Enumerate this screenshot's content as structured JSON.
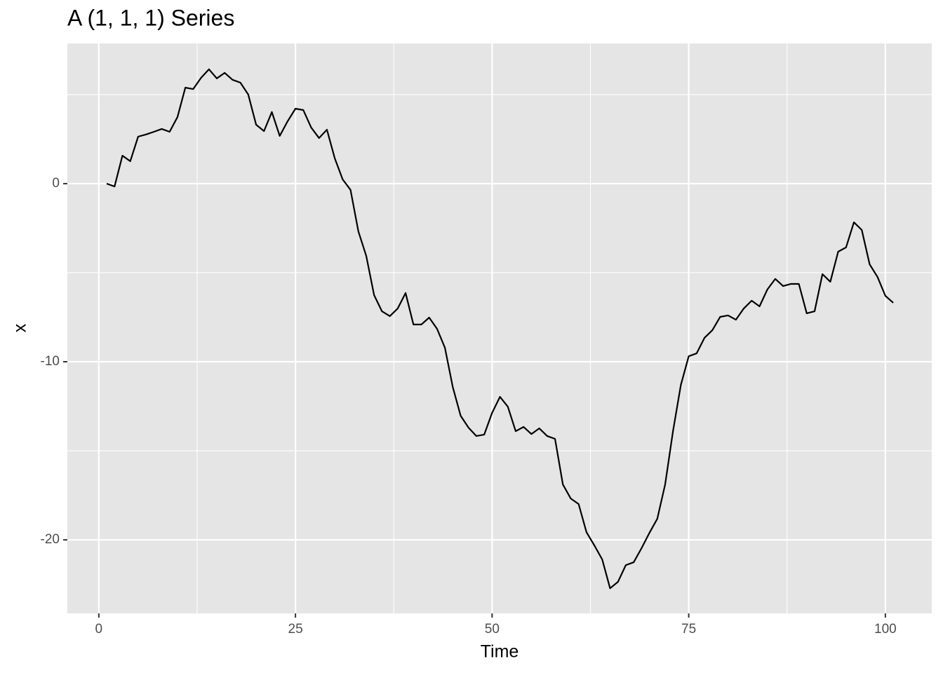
{
  "chart_data": {
    "type": "line",
    "title": "A (1, 1, 1) Series",
    "xlabel": "Time",
    "ylabel": "x",
    "x": [
      1,
      2,
      3,
      4,
      5,
      6,
      7,
      8,
      9,
      10,
      11,
      12,
      13,
      14,
      15,
      16,
      17,
      18,
      19,
      20,
      21,
      22,
      23,
      24,
      25,
      26,
      27,
      28,
      29,
      30,
      31,
      32,
      33,
      34,
      35,
      36,
      37,
      38,
      39,
      40,
      41,
      42,
      43,
      44,
      45,
      46,
      47,
      48,
      49,
      50,
      51,
      52,
      53,
      54,
      55,
      56,
      57,
      58,
      59,
      60,
      61,
      62,
      63,
      64,
      65,
      66,
      67,
      68,
      69,
      70,
      71,
      72,
      73,
      74,
      75,
      76,
      77,
      78,
      79,
      80,
      81,
      82,
      83,
      84,
      85,
      86,
      87,
      88,
      89,
      90,
      91,
      92,
      93,
      94,
      95,
      96,
      97,
      98,
      99,
      100,
      101
    ],
    "series": [
      {
        "name": "x",
        "color": "#000000",
        "values": [
          0,
          -0.16,
          1.57,
          1.26,
          2.64,
          2.76,
          2.91,
          3.07,
          2.91,
          3.74,
          5.39,
          5.31,
          5.94,
          6.42,
          5.91,
          6.22,
          5.83,
          5.67,
          5.0,
          3.31,
          2.95,
          4.02,
          2.68,
          3.5,
          4.21,
          4.13,
          3.15,
          2.56,
          3.03,
          1.42,
          0.24,
          -0.35,
          -2.68,
          -4.06,
          -6.26,
          -7.17,
          -7.44,
          -7.01,
          -6.14,
          -7.91,
          -7.91,
          -7.52,
          -8.15,
          -9.21,
          -11.42,
          -13.03,
          -13.7,
          -14.17,
          -14.09,
          -12.87,
          -11.97,
          -12.52,
          -13.9,
          -13.66,
          -14.06,
          -13.74,
          -14.17,
          -14.33,
          -16.89,
          -17.68,
          -17.99,
          -19.57,
          -20.31,
          -21.1,
          -22.72,
          -22.36,
          -21.42,
          -21.26,
          -20.47,
          -19.61,
          -18.82,
          -16.89,
          -13.9,
          -11.3,
          -9.69,
          -9.53,
          -8.66,
          -8.23,
          -7.48,
          -7.4,
          -7.64,
          -7.01,
          -6.57,
          -6.89,
          -5.94,
          -5.35,
          -5.75,
          -5.63,
          -5.63,
          -7.28,
          -7.17,
          -5.08,
          -5.51,
          -3.82,
          -3.58,
          -2.17,
          -2.6,
          -4.53,
          -5.24,
          -6.3,
          -6.69
        ]
      }
    ],
    "xlim": [
      -4.0,
      105.9
    ],
    "ylim": [
      -24.13,
      7.87
    ],
    "xticks": [
      0,
      25,
      50,
      75,
      100
    ],
    "yticks": [
      0,
      -10,
      -20
    ],
    "xminor": [
      12.5,
      37.5,
      62.5,
      87.5
    ],
    "yminor": [
      5,
      -5,
      -15
    ],
    "grid": true
  }
}
